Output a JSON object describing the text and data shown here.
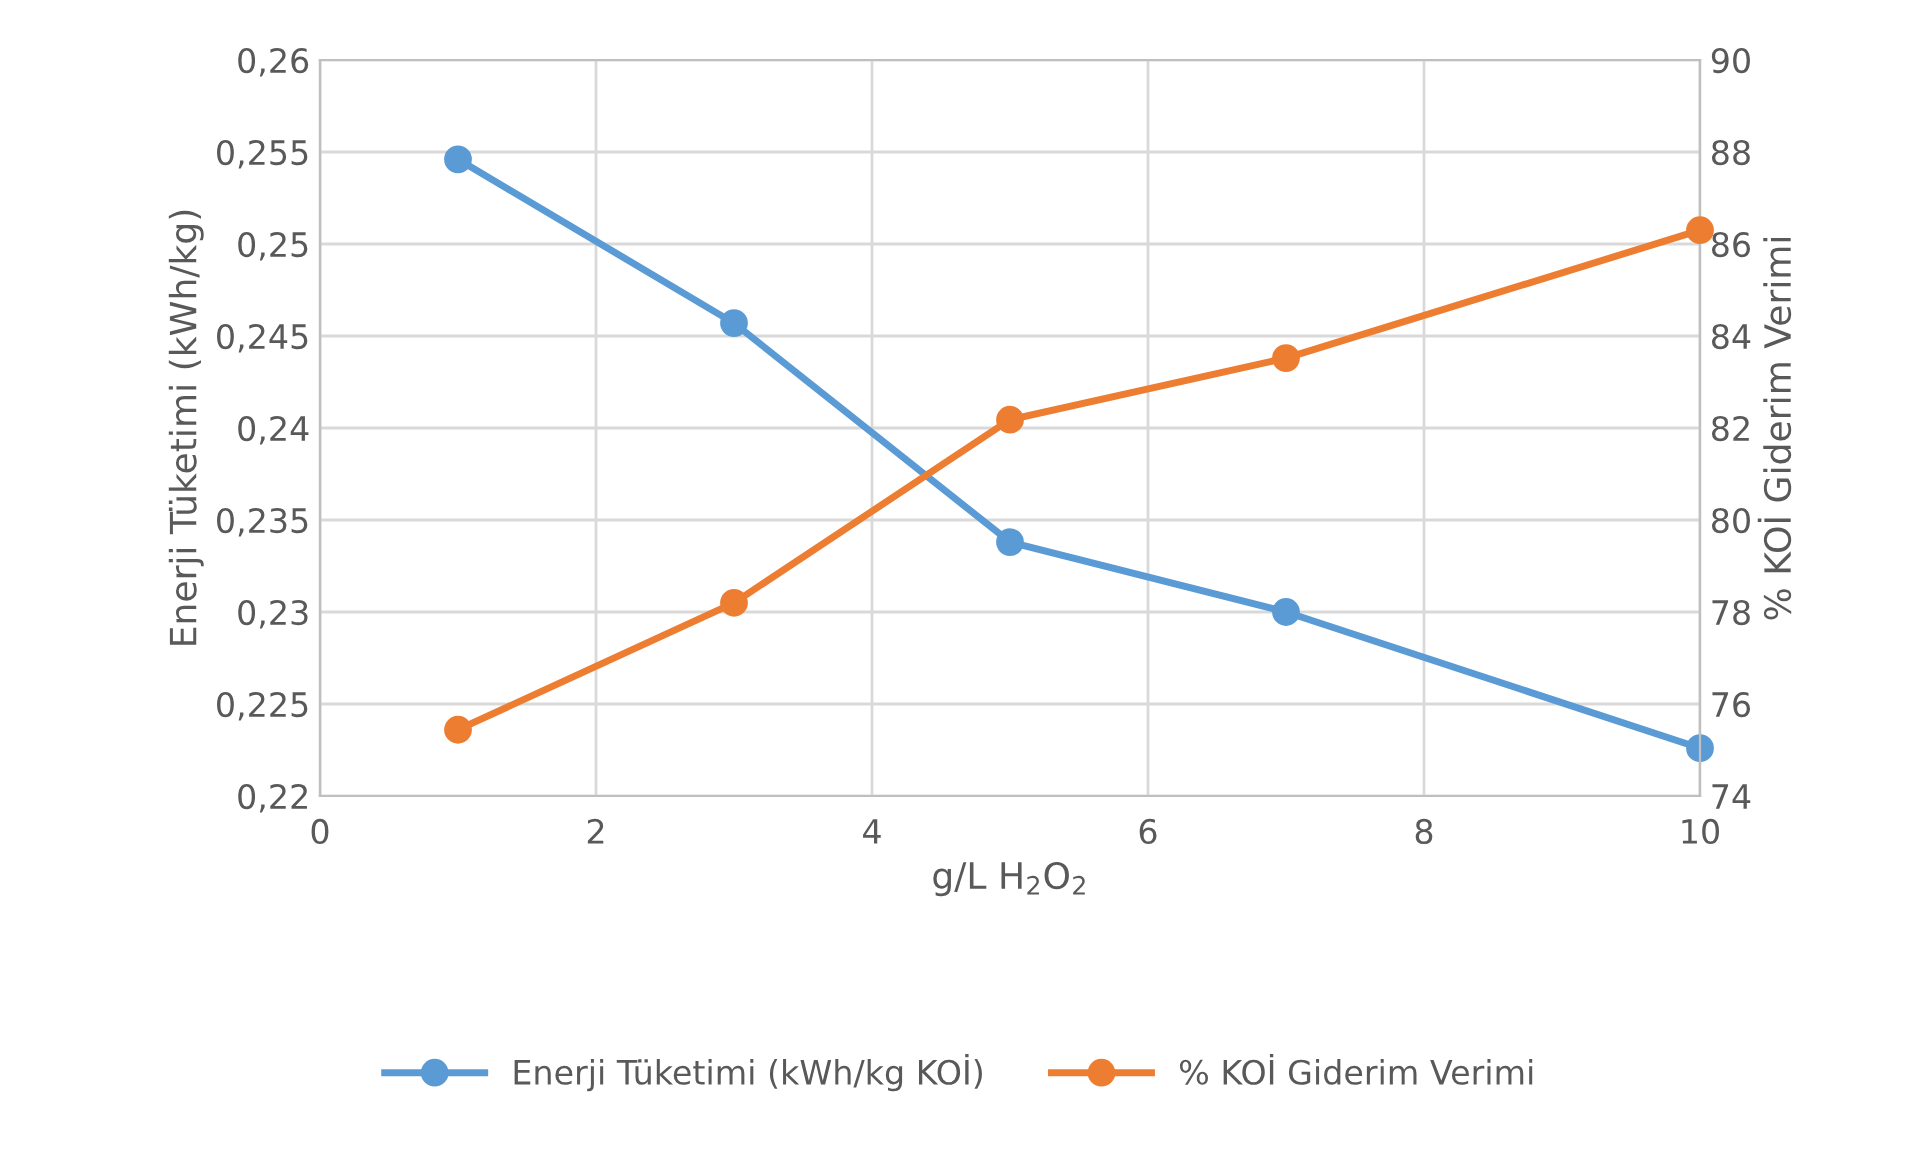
{
  "chart_data": {
    "type": "line",
    "xlabel": "g/L H$_{2}$O$_{2}$",
    "ylabel": "Enerji Tüketimi (kWh/kg)",
    "y2label": "% KOİ Giderim Verimi",
    "x": [
      1,
      3,
      5,
      7,
      10
    ],
    "series": [
      {
        "name": "Enerji Tüketimi (kWh/kg KOİ)",
        "color": "#5b9bd5",
        "values": [
          0.2546,
          0.2457,
          0.2338,
          0.23,
          0.2226
        ]
      },
      {
        "name": "% KOİ Giderim Verimi",
        "color": "#ed7d31",
        "axis": "y2",
        "values": [
          75.44,
          78.2,
          82.18,
          83.52,
          86.3
        ]
      }
    ],
    "xlim": [
      0,
      10
    ],
    "xticks": [
      0,
      2,
      4,
      6,
      8,
      10
    ],
    "ylim": [
      0.22,
      0.26
    ],
    "yticks": [
      {
        "value": 0.22,
        "label": "0,22"
      },
      {
        "value": 0.225,
        "label": "0,225"
      },
      {
        "value": 0.23,
        "label": "0,23"
      },
      {
        "value": 0.235,
        "label": "0,235"
      },
      {
        "value": 0.24,
        "label": "0,24"
      },
      {
        "value": 0.245,
        "label": "0,245"
      },
      {
        "value": 0.25,
        "label": "0,25"
      },
      {
        "value": 0.255,
        "label": "0,255"
      },
      {
        "value": 0.26,
        "label": "0,26"
      }
    ],
    "y2lim": [
      74,
      90
    ],
    "y2ticks": [
      74,
      76,
      78,
      80,
      82,
      84,
      86,
      88,
      90
    ],
    "grid": true,
    "legend": "bottom",
    "marker": "circle",
    "line_style": "solid"
  }
}
